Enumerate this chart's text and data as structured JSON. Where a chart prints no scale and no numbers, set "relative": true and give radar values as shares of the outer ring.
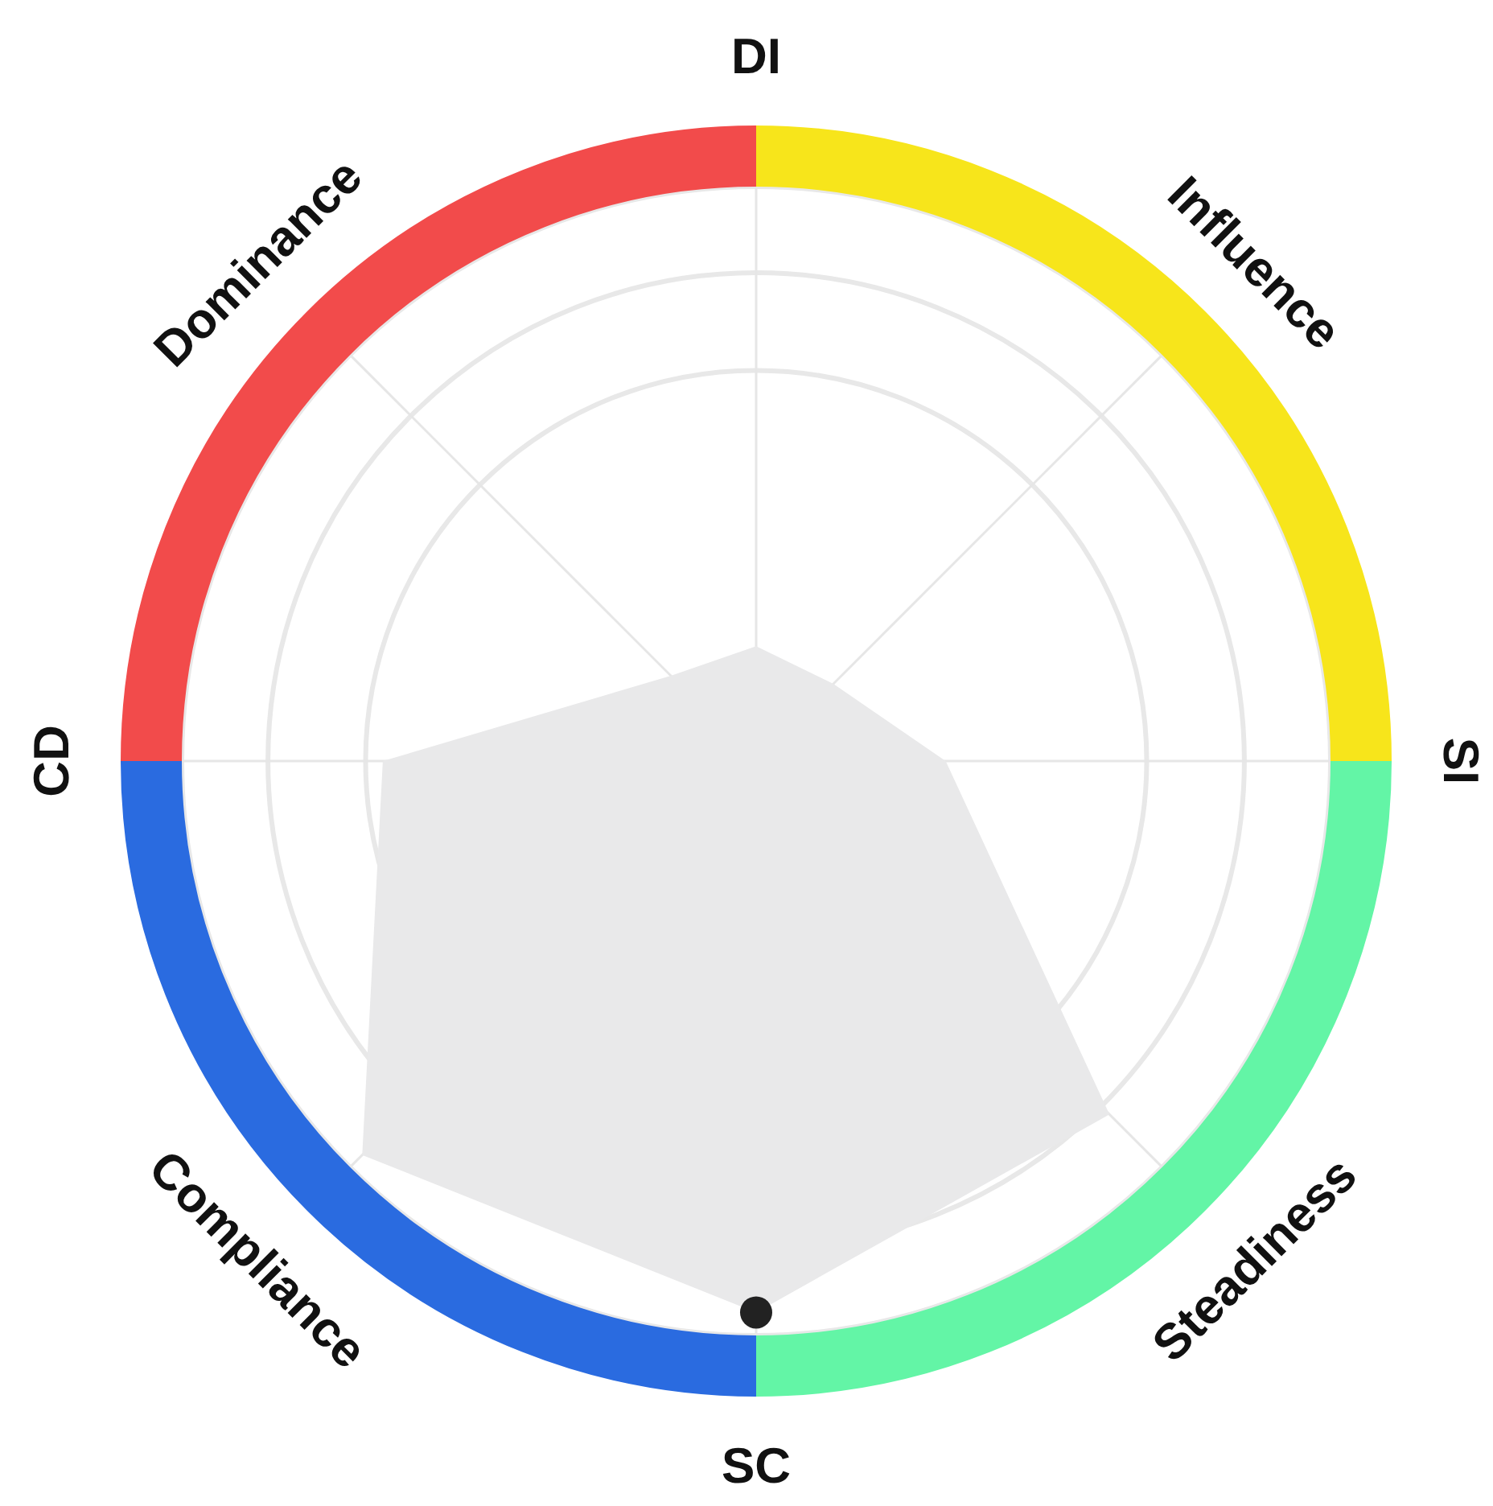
{
  "chart_data": {
    "type": "radar",
    "relative": true,
    "categories": [
      "DI",
      "Influence",
      "SI",
      "Steadiness",
      "SC",
      "Compliance",
      "CD",
      "Dominance"
    ],
    "series": [
      {
        "color": "#e9e9ea",
        "values": [
          0.2,
          0.19,
          0.33,
          0.87,
          0.96,
          0.97,
          0.65,
          0.21
        ]
      }
    ],
    "grid": true
  }
}
